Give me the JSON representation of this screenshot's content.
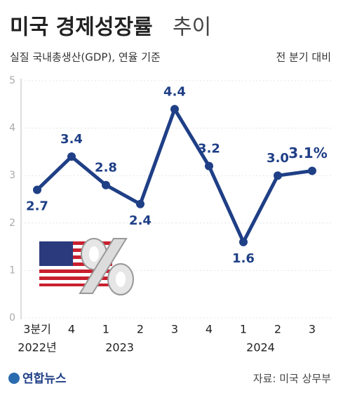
{
  "chart_data": {
    "type": "line",
    "title": "미국 경제성장률",
    "title_suffix": "추이",
    "subtitle": "실질 국내총생산(GDP), 연율 기준",
    "note": "전 분기 대비",
    "categories": [
      "3분기",
      "4",
      "1",
      "2",
      "3",
      "4",
      "1",
      "2",
      "3"
    ],
    "years": [
      "2022년",
      "2023",
      "2024"
    ],
    "values": [
      2.7,
      3.4,
      2.8,
      2.4,
      4.4,
      3.2,
      1.6,
      3.0,
      3.1
    ],
    "value_labels": [
      "2.7",
      "3.4",
      "2.8",
      "2.4",
      "4.4",
      "3.2",
      "1.6",
      "3.0",
      "3.1%"
    ],
    "color": "#1f3f86",
    "ylim": [
      0,
      5
    ],
    "yticks": [
      0,
      1,
      2,
      3,
      4,
      5
    ],
    "grid": true,
    "source": "자료: 미국 상무부",
    "logo": "연합뉴스"
  }
}
